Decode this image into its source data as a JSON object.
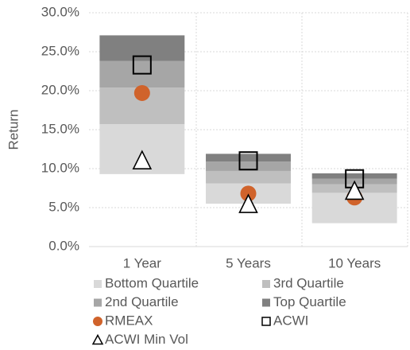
{
  "chart_data": {
    "type": "bar",
    "y_label": "Return",
    "categories": [
      "1 Year",
      "5 Years",
      "10 Years"
    ],
    "base": [
      9.3,
      5.5,
      3.0
    ],
    "series": [
      {
        "name": "Bottom Quartile",
        "color": "#d9d9d9",
        "values": [
          6.4,
          2.6,
          3.9
        ]
      },
      {
        "name": "3rd Quartile",
        "color": "#bfbfbf",
        "values": [
          4.7,
          1.6,
          1.1
        ]
      },
      {
        "name": "2nd Quartile",
        "color": "#a6a6a6",
        "values": [
          3.4,
          1.2,
          0.7
        ]
      },
      {
        "name": "Top Quartile",
        "color": "#808080",
        "values": [
          3.3,
          1.0,
          0.7
        ]
      },
      {
        "name": "RMEAX",
        "color": "#d0632b",
        "marker": "circle",
        "values": [
          19.7,
          6.8,
          6.3
        ]
      },
      {
        "name": "ACWI",
        "color": "#000000",
        "marker": "square",
        "values": [
          23.3,
          11.0,
          8.7
        ]
      },
      {
        "name": "ACWI Min Vol",
        "color": "#000000",
        "marker": "triangle",
        "values": [
          11.0,
          5.4,
          7.1
        ]
      }
    ],
    "ylim": [
      0,
      30
    ],
    "yticks": [
      {
        "value": 0,
        "label": "0.0%"
      },
      {
        "value": 5,
        "label": "5.0%"
      },
      {
        "value": 10,
        "label": "10.0%"
      },
      {
        "value": 15,
        "label": "15.0%"
      },
      {
        "value": 20,
        "label": "20.0%"
      },
      {
        "value": 25,
        "label": "25.0%"
      },
      {
        "value": 30,
        "label": "30.0%"
      }
    ],
    "grid": true
  }
}
